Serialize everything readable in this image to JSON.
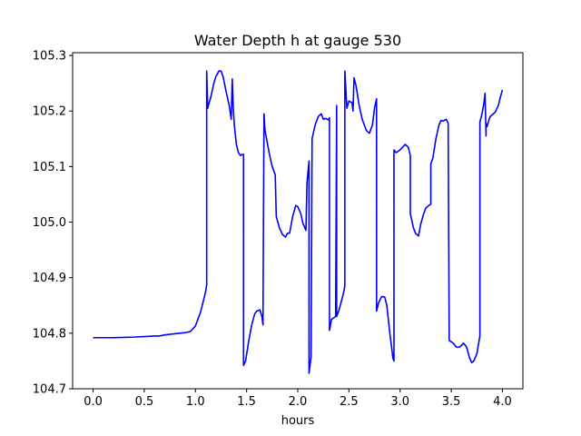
{
  "chart_data": {
    "type": "line",
    "title": "Water Depth h at gauge 530",
    "xlabel": "hours",
    "ylabel": "",
    "xlim": [
      -0.2,
      4.2
    ],
    "ylim": [
      104.7,
      105.305
    ],
    "xticks": [
      0.0,
      0.5,
      1.0,
      1.5,
      2.0,
      2.5,
      3.0,
      3.5,
      4.0
    ],
    "xtick_labels": [
      "0.0",
      "0.5",
      "1.0",
      "1.5",
      "2.0",
      "2.5",
      "3.0",
      "3.5",
      "4.0"
    ],
    "yticks": [
      104.7,
      104.8,
      104.9,
      105.0,
      105.1,
      105.2,
      105.3
    ],
    "ytick_labels": [
      "104.7",
      "104.8",
      "104.9",
      "105.0",
      "105.1",
      "105.2",
      "105.3"
    ],
    "grid": false,
    "legend": "none",
    "series": [
      {
        "color": "#0000ff",
        "x": [
          0.0,
          0.2,
          0.4,
          0.6,
          0.65,
          0.7,
          0.8,
          0.9,
          0.95,
          1.0,
          1.05,
          1.08,
          1.1,
          1.11,
          1.11,
          1.12,
          1.13,
          1.15,
          1.18,
          1.2,
          1.23,
          1.25,
          1.27,
          1.3,
          1.33,
          1.35,
          1.36,
          1.37,
          1.38,
          1.4,
          1.42,
          1.44,
          1.46,
          1.47,
          1.47,
          1.49,
          1.52,
          1.55,
          1.58,
          1.6,
          1.63,
          1.65,
          1.66,
          1.67,
          1.68,
          1.72,
          1.75,
          1.76,
          1.78,
          1.79,
          1.82,
          1.85,
          1.88,
          1.9,
          1.92,
          1.95,
          1.98,
          2.0,
          2.03,
          2.05,
          2.08,
          2.09,
          2.11,
          2.11,
          2.13,
          2.14,
          2.17,
          2.2,
          2.23,
          2.25,
          2.27,
          2.3,
          2.31,
          2.31,
          2.33,
          2.37,
          2.38,
          2.38,
          2.4,
          2.43,
          2.45,
          2.46,
          2.46,
          2.48,
          2.5,
          2.53,
          2.54,
          2.55,
          2.57,
          2.6,
          2.63,
          2.67,
          2.7,
          2.73,
          2.75,
          2.77,
          2.77,
          2.79,
          2.82,
          2.85,
          2.87,
          2.9,
          2.93,
          2.94,
          2.94,
          2.96,
          3.0,
          3.05,
          3.08,
          3.1,
          3.1,
          3.13,
          3.15,
          3.18,
          3.2,
          3.23,
          3.25,
          3.28,
          3.3,
          3.3,
          3.32,
          3.35,
          3.38,
          3.4,
          3.42,
          3.45,
          3.47,
          3.47,
          3.48,
          3.52,
          3.55,
          3.58,
          3.6,
          3.62,
          3.65,
          3.68,
          3.7,
          3.72,
          3.75,
          3.78,
          3.78,
          3.8,
          3.82,
          3.83,
          3.84,
          3.84,
          3.85,
          3.87,
          3.88,
          3.9,
          3.93,
          3.96,
          3.98,
          4.0
        ],
        "y": [
          104.792,
          104.792,
          104.793,
          104.795,
          104.795,
          104.797,
          104.799,
          104.801,
          104.803,
          104.813,
          104.838,
          104.86,
          104.875,
          104.887,
          105.272,
          105.205,
          105.212,
          105.225,
          105.25,
          105.262,
          105.272,
          105.272,
          105.262,
          105.235,
          105.21,
          105.185,
          105.258,
          105.205,
          105.175,
          105.14,
          105.125,
          105.12,
          105.122,
          105.122,
          104.742,
          104.75,
          104.785,
          104.815,
          104.835,
          104.84,
          104.842,
          104.83,
          104.815,
          105.195,
          105.165,
          105.125,
          105.1,
          105.095,
          105.085,
          105.01,
          104.99,
          104.978,
          104.973,
          104.98,
          104.98,
          105.01,
          105.03,
          105.028,
          105.015,
          104.998,
          104.985,
          105.07,
          105.11,
          104.728,
          104.757,
          105.15,
          105.175,
          105.19,
          105.195,
          105.185,
          105.187,
          105.184,
          105.188,
          104.805,
          104.825,
          104.83,
          105.21,
          104.83,
          104.84,
          104.86,
          104.875,
          104.885,
          105.272,
          105.205,
          105.218,
          105.215,
          105.2,
          105.26,
          105.245,
          105.21,
          105.185,
          105.165,
          105.16,
          105.175,
          105.205,
          105.222,
          104.84,
          104.855,
          104.866,
          104.865,
          104.85,
          104.8,
          104.755,
          104.75,
          105.13,
          105.125,
          105.13,
          105.14,
          105.135,
          105.12,
          105.015,
          104.99,
          104.98,
          104.975,
          104.995,
          105.015,
          105.025,
          105.03,
          105.032,
          105.105,
          105.115,
          105.15,
          105.175,
          105.183,
          105.182,
          105.185,
          105.178,
          105.165,
          104.787,
          104.782,
          104.775,
          104.775,
          104.778,
          104.782,
          104.775,
          104.755,
          104.747,
          104.75,
          104.763,
          104.795,
          105.18,
          105.195,
          105.215,
          105.232,
          105.155,
          105.178,
          105.172,
          105.185,
          105.19,
          105.193,
          105.198,
          105.21,
          105.225,
          105.238
        ]
      }
    ]
  }
}
